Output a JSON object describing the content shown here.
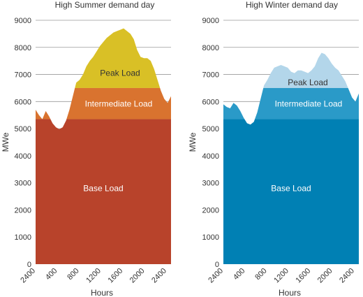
{
  "chart_data": [
    {
      "type": "area",
      "title": "High Summer demand day",
      "xlabel": "Hours",
      "ylabel": "MWe",
      "ylim": [
        0,
        9000
      ],
      "yticks": [
        "0",
        "1000",
        "2000",
        "3000",
        "4000",
        "5000",
        "6000",
        "7000",
        "8000",
        "9000"
      ],
      "xticks": [
        "2400",
        "400",
        "800",
        "1200",
        "1600",
        "2000",
        "2400"
      ],
      "grid": "horizontal",
      "x_hours": [
        0,
        0.5,
        1,
        1.5,
        2,
        2.5,
        3,
        3.5,
        4,
        4.5,
        5,
        5.5,
        6,
        6.5,
        7,
        7.5,
        8,
        8.5,
        9,
        9.5,
        10,
        10.5,
        11,
        11.5,
        12,
        12.5,
        13,
        13.5,
        14,
        14.5,
        15,
        15.5,
        16,
        16.5,
        17,
        17.5,
        18,
        18.5,
        19,
        19.5,
        20,
        20.5,
        21,
        21.5,
        22,
        22.5,
        23,
        23.5,
        24
      ],
      "total": [
        5700,
        5500,
        5350,
        5650,
        5450,
        5200,
        5050,
        4980,
        5050,
        5300,
        5700,
        6200,
        6700,
        6800,
        7000,
        7300,
        7500,
        7650,
        7850,
        8050,
        8200,
        8350,
        8450,
        8550,
        8600,
        8650,
        8700,
        8600,
        8500,
        8300,
        7900,
        7650,
        7600,
        7600,
        7500,
        7200,
        6800,
        6400,
        6100,
        5950,
        6200
      ],
      "x_total": [
        0,
        0.5,
        1,
        1.5,
        2,
        2.5,
        3,
        3.5,
        4,
        4.5,
        5,
        5.5,
        6,
        6.5,
        7,
        7.5,
        8,
        8.5,
        9,
        9.5,
        10,
        10.5,
        11,
        11.5,
        12,
        12.5,
        13,
        13.5,
        14,
        14.5,
        15,
        15.5,
        16,
        16.5,
        17,
        17.5,
        18,
        18.5,
        19,
        19.5,
        20
      ],
      "series": [
        {
          "name": "Base Load",
          "level": 5350,
          "color": "#b8432b"
        },
        {
          "name": "Intermediate Load",
          "level": 6500,
          "color": "#d9732f"
        },
        {
          "name": "Peak Load",
          "color": "#d9c026"
        }
      ]
    },
    {
      "type": "area",
      "title": "High Winter demand day",
      "xlabel": "Hours",
      "ylabel": "MWe",
      "ylim": [
        0,
        9000
      ],
      "yticks": [
        "0",
        "1000",
        "2000",
        "3000",
        "4000",
        "5000",
        "6000",
        "7000",
        "8000",
        "9000"
      ],
      "xticks": [
        "2400",
        "400",
        "800",
        "1200",
        "1600",
        "2000",
        "2400"
      ],
      "grid": "horizontal",
      "total": [
        5900,
        5800,
        5750,
        5950,
        5850,
        5650,
        5400,
        5200,
        5150,
        5250,
        5600,
        6100,
        6600,
        6800,
        7050,
        7250,
        7300,
        7350,
        7300,
        7250,
        7100,
        7050,
        7150,
        7150,
        7100,
        7050,
        7150,
        7300,
        7600,
        7800,
        7750,
        7600,
        7400,
        7250,
        7150,
        6950,
        6750,
        6450,
        6150,
        6000,
        6300
      ],
      "x_total": [
        0,
        0.5,
        1,
        1.5,
        2,
        2.5,
        3,
        3.5,
        4,
        4.5,
        5,
        5.5,
        6,
        6.5,
        7,
        7.5,
        8,
        8.5,
        9,
        9.5,
        10,
        10.5,
        11,
        11.5,
        12,
        12.5,
        13,
        13.5,
        14,
        14.5,
        15,
        15.5,
        16,
        16.5,
        17,
        17.5,
        18,
        18.5,
        19,
        19.5,
        20
      ],
      "series": [
        {
          "name": "Base Load",
          "level": 5350,
          "color": "#0080b4"
        },
        {
          "name": "Intermediate Load",
          "level": 6500,
          "color": "#2a9ac8"
        },
        {
          "name": "Peak Load",
          "color": "#b3d6ea"
        }
      ]
    }
  ]
}
